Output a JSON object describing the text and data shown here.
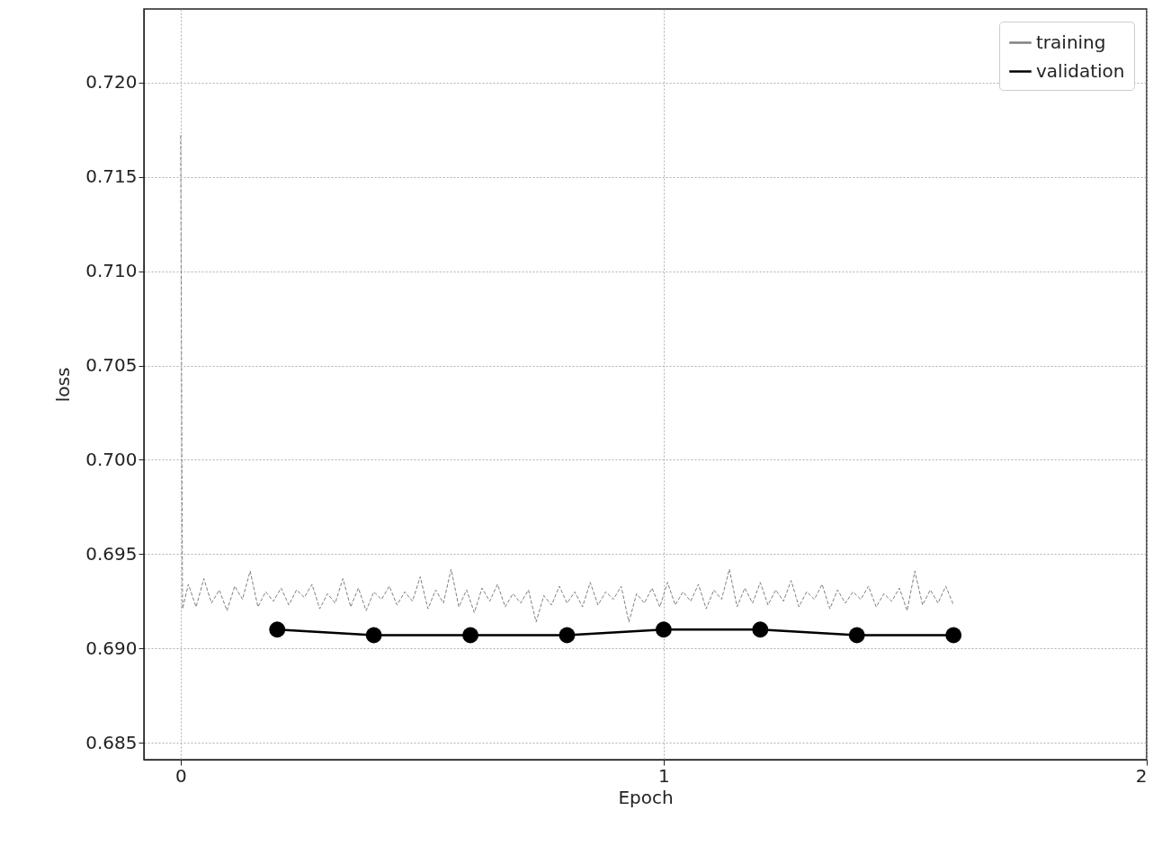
{
  "chart_data": {
    "type": "line",
    "xlabel": "Epoch",
    "ylabel": "loss",
    "xlim": [
      -0.076,
      2.0
    ],
    "xticks": [
      0,
      1,
      2
    ],
    "ylim": [
      0.6841,
      0.7239
    ],
    "yticks": [
      {
        "value": 0.685,
        "label": "0.685"
      },
      {
        "value": 0.69,
        "label": "0.690"
      },
      {
        "value": 0.695,
        "label": "0.695"
      },
      {
        "value": 0.7,
        "label": "0.700"
      },
      {
        "value": 0.705,
        "label": "0.705"
      },
      {
        "value": 0.71,
        "label": "0.710"
      },
      {
        "value": 0.715,
        "label": "0.715"
      },
      {
        "value": 0.72,
        "label": "0.720"
      }
    ],
    "grid": true,
    "legend": "top right",
    "series": [
      {
        "name": "training",
        "color": "#808080",
        "line_style": "dashed",
        "marker": "none",
        "x": [
          0,
          0.004,
          0.016,
          0.032,
          0.048,
          0.064,
          0.08,
          0.096,
          0.112,
          0.128,
          0.144,
          0.16,
          0.176,
          0.192,
          0.208,
          0.224,
          0.24,
          0.256,
          0.272,
          0.288,
          0.304,
          0.32,
          0.336,
          0.352,
          0.368,
          0.384,
          0.4,
          0.416,
          0.432,
          0.448,
          0.464,
          0.48,
          0.496,
          0.512,
          0.528,
          0.544,
          0.56,
          0.576,
          0.592,
          0.608,
          0.624,
          0.64,
          0.656,
          0.672,
          0.688,
          0.704,
          0.72,
          0.736,
          0.752,
          0.768,
          0.784,
          0.8,
          0.816,
          0.832,
          0.848,
          0.864,
          0.88,
          0.896,
          0.912,
          0.928,
          0.944,
          0.96,
          0.976,
          0.992,
          1.008,
          1.024,
          1.04,
          1.056,
          1.072,
          1.088,
          1.104,
          1.12,
          1.136,
          1.152,
          1.168,
          1.184,
          1.2,
          1.216,
          1.232,
          1.248,
          1.264,
          1.28,
          1.296,
          1.312,
          1.328,
          1.344,
          1.36,
          1.376,
          1.392,
          1.408,
          1.424,
          1.44,
          1.456,
          1.472,
          1.488,
          1.504,
          1.52,
          1.536,
          1.552,
          1.568,
          1.584,
          1.6
        ],
        "values": [
          0.7172,
          0.6921,
          0.6934,
          0.6922,
          0.6937,
          0.6924,
          0.6931,
          0.692,
          0.6933,
          0.6926,
          0.6941,
          0.6922,
          0.693,
          0.6925,
          0.6932,
          0.6923,
          0.6931,
          0.6927,
          0.6934,
          0.6921,
          0.6929,
          0.6924,
          0.6937,
          0.6922,
          0.6932,
          0.692,
          0.693,
          0.6926,
          0.6933,
          0.6923,
          0.693,
          0.6925,
          0.6938,
          0.6921,
          0.6931,
          0.6924,
          0.6942,
          0.6922,
          0.6931,
          0.6919,
          0.6932,
          0.6925,
          0.6934,
          0.6922,
          0.6929,
          0.6924,
          0.6931,
          0.6914,
          0.6928,
          0.6923,
          0.6933,
          0.6924,
          0.693,
          0.6922,
          0.6935,
          0.6923,
          0.693,
          0.6926,
          0.6933,
          0.6914,
          0.6929,
          0.6924,
          0.6932,
          0.6922,
          0.6935,
          0.6923,
          0.693,
          0.6925,
          0.6934,
          0.6921,
          0.6931,
          0.6926,
          0.6942,
          0.6922,
          0.6932,
          0.6924,
          0.6935,
          0.6923,
          0.6931,
          0.6925,
          0.6936,
          0.6922,
          0.693,
          0.6926,
          0.6934,
          0.6921,
          0.6931,
          0.6924,
          0.693,
          0.6926,
          0.6933,
          0.6922,
          0.6929,
          0.6925,
          0.6932,
          0.692,
          0.6941,
          0.6923,
          0.6931,
          0.6924,
          0.6933,
          0.6923
        ]
      },
      {
        "name": "validation",
        "color": "#000000",
        "line_style": "solid",
        "marker": "circle",
        "x": [
          0.2,
          0.4,
          0.6,
          0.8,
          1.0,
          1.2,
          1.4,
          1.6
        ],
        "values": [
          0.691,
          0.6907,
          0.6907,
          0.6907,
          0.691,
          0.691,
          0.6907,
          0.6907
        ]
      }
    ]
  }
}
